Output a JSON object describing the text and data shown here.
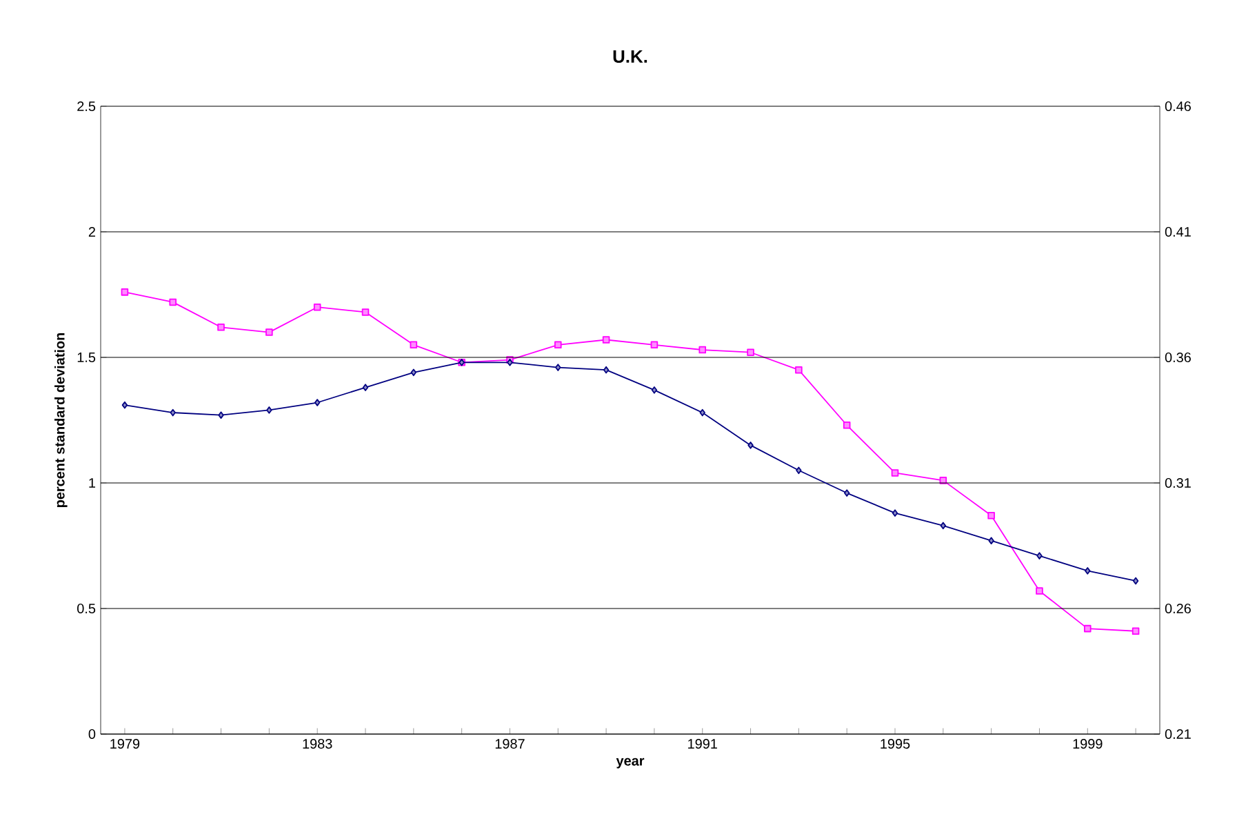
{
  "chart_data": {
    "type": "line",
    "title": "U.K.",
    "xlabel": "year",
    "ylabel": "percent standard deviation",
    "categories": [
      "1979",
      null,
      null,
      null,
      "1983",
      null,
      null,
      null,
      "1987",
      null,
      null,
      null,
      "1991",
      null,
      null,
      null,
      "1995",
      null,
      null,
      null,
      "1999",
      null
    ],
    "series": [
      {
        "color": "#000080",
        "marker": "diamond",
        "values": [
          1.31,
          1.28,
          1.27,
          1.29,
          1.32,
          1.38,
          1.44,
          1.48,
          1.48,
          1.46,
          1.45,
          1.37,
          1.28,
          1.15,
          1.05,
          0.96,
          0.88,
          0.83,
          0.77,
          0.71,
          0.65,
          0.61
        ]
      },
      {
        "color": "#ff00ff",
        "marker": "square",
        "axis": "y2",
        "values": [
          0.386,
          0.382,
          0.372,
          0.37,
          0.38,
          0.378,
          0.365,
          0.358,
          0.359,
          0.365,
          0.367,
          0.365,
          0.363,
          0.362,
          0.355,
          0.333,
          0.314,
          0.311,
          0.297,
          0.267,
          0.252,
          0.251
        ]
      }
    ],
    "ylim": [
      0,
      2.5
    ],
    "yticks": [
      0,
      0.5,
      1,
      1.5,
      2,
      2.5
    ],
    "y2lim": [
      0.21,
      0.46
    ],
    "y2ticks": [
      0.21,
      0.26,
      0.31,
      0.36,
      0.41,
      0.46
    ],
    "grid": "y",
    "line_style": "solid"
  }
}
